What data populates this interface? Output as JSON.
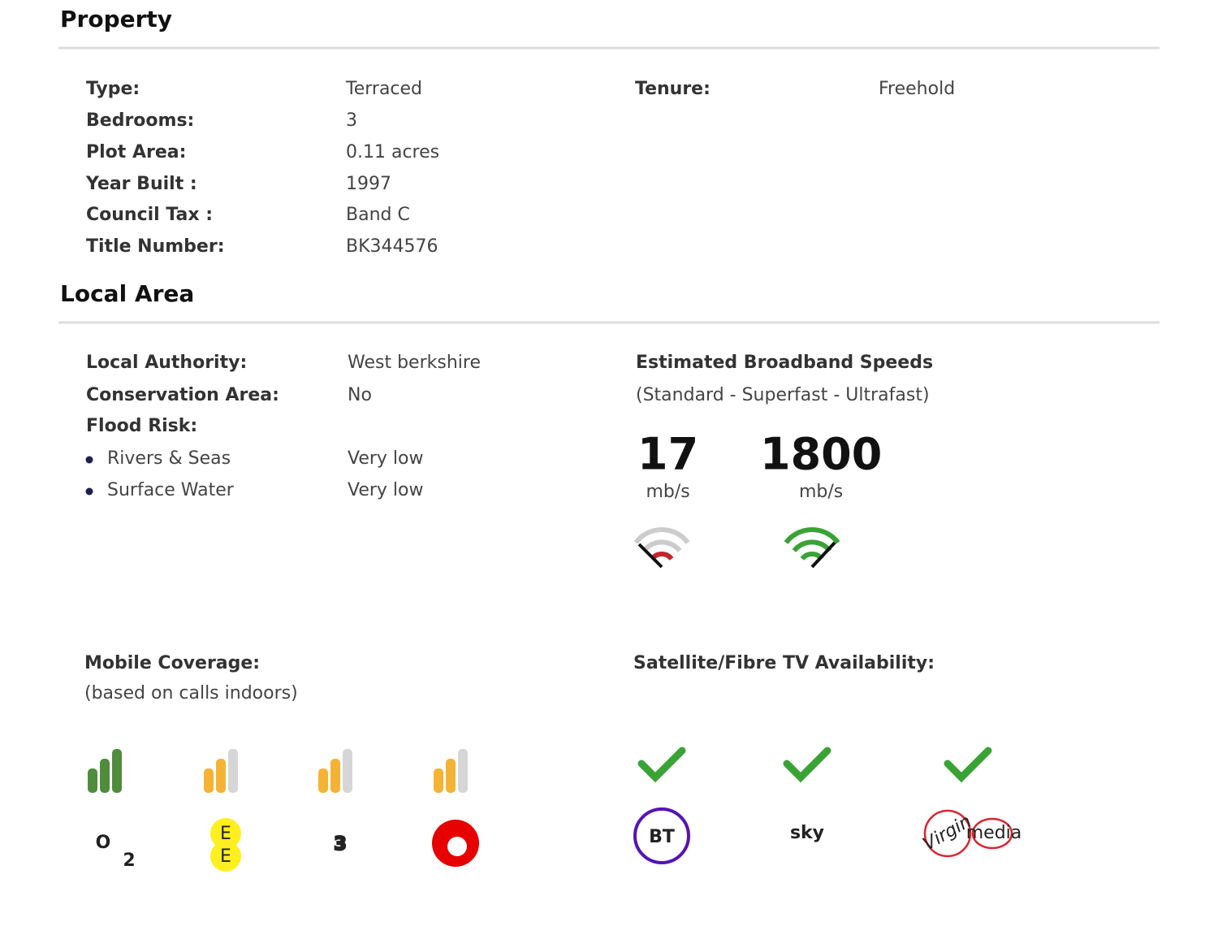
{
  "property": {
    "title": "Property",
    "rows": [
      [
        "Type:",
        "Terraced"
      ],
      [
        "Bedrooms:",
        "3"
      ],
      [
        "Plot Area:",
        "0.11 acres"
      ],
      [
        "Year Built :",
        "1997"
      ],
      [
        "Council Tax :",
        "Band C"
      ],
      [
        "Title Number:",
        "BK344576"
      ]
    ],
    "tenure": [
      "Tenure:",
      "Freehold"
    ]
  },
  "local_area": {
    "title": "Local Area",
    "rows": [
      [
        "Local Authority:",
        "West berkshire"
      ],
      [
        "Conservation Area:",
        "No"
      ]
    ],
    "flood_risk": {
      "label": "Flood Risk:",
      "rows": [
        [
          "Rivers & Seas",
          "Very low"
        ],
        [
          "Surface Water",
          "Very low"
        ]
      ]
    }
  },
  "broadband": {
    "title": "Estimated Broadband Speeds",
    "subtitle": "(Standard - Superfast - Ultrafast)",
    "speeds": [
      {
        "value": 17,
        "unit": "mb/s"
      },
      {
        "value": 1800,
        "unit": "mb/s"
      }
    ]
  },
  "mobile_coverage": {
    "title": "Mobile Coverage:",
    "subtitle": "(based on calls indoors)",
    "operators": [
      {
        "signal": 3,
        "color": "#4e8d3c",
        "logo": [
          "O",
          "2"
        ]
      },
      {
        "signal": 2,
        "color": "#f5b335",
        "logo": [
          "E",
          "E"
        ]
      },
      {
        "signal": 2,
        "color": "#f5b335",
        "logo": [
          "3"
        ]
      },
      {
        "signal": 2,
        "color": "#f5b335"
      }
    ]
  },
  "tv": {
    "title": "Satellite/Fibre TV Availability:",
    "providers": [
      {
        "available": true,
        "logo": [
          "BT"
        ]
      },
      {
        "available": true,
        "logo": [
          "sky"
        ]
      },
      {
        "available": true,
        "logo": [
          "Virgin",
          "media"
        ]
      }
    ]
  }
}
